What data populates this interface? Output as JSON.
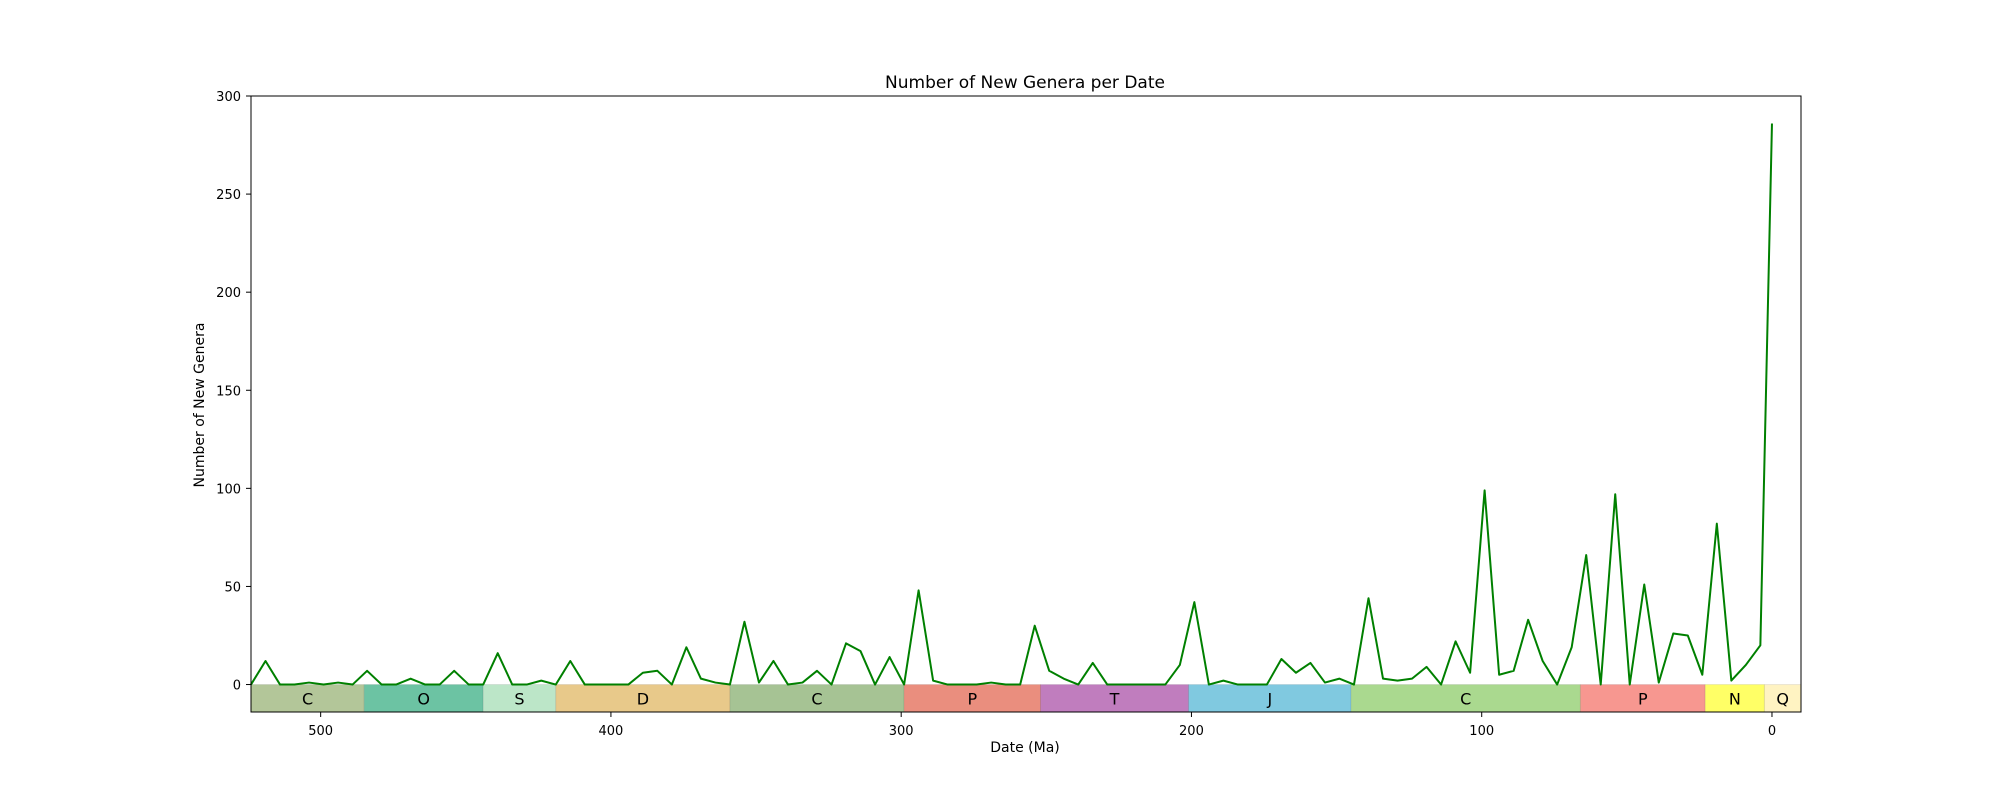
{
  "chart_data": {
    "type": "line",
    "title": "Number of New Genera per Date",
    "xlabel": "Date (Ma)",
    "ylabel": "Number of New Genera",
    "x_reversed": true,
    "xlim": [
      524,
      -10
    ],
    "ylim": [
      -14,
      300
    ],
    "x_ticks": [
      500,
      400,
      300,
      200,
      100,
      0
    ],
    "y_ticks": [
      0,
      50,
      100,
      150,
      200,
      250,
      300
    ],
    "grid": false,
    "line_color": "#008000",
    "series": [
      {
        "x": [
          524,
          519,
          514,
          509,
          504,
          499,
          494,
          489,
          484,
          479,
          474,
          469,
          464,
          459,
          454,
          449,
          444,
          439,
          434,
          429,
          424,
          419,
          414,
          409,
          404,
          399,
          394,
          389,
          384,
          379,
          374,
          369,
          364,
          359,
          354,
          349,
          344,
          339,
          334,
          329,
          324,
          319,
          314,
          309,
          304,
          299,
          294,
          289,
          284,
          279,
          274,
          269,
          264,
          259,
          254,
          249,
          244,
          239,
          234,
          229,
          224,
          219,
          214,
          209,
          204,
          199,
          194,
          189,
          184,
          179,
          174,
          169,
          164,
          159,
          154,
          149,
          144,
          139,
          134,
          129,
          124,
          119,
          114,
          109,
          104,
          99,
          94,
          89,
          84,
          79,
          74,
          69,
          64,
          59,
          54,
          49,
          44,
          39,
          34,
          29,
          24,
          19,
          14,
          9,
          4,
          0
        ],
        "values": [
          0,
          12,
          0,
          0,
          1,
          0,
          1,
          0,
          7,
          0,
          0,
          3,
          0,
          0,
          7,
          0,
          0,
          16,
          0,
          0,
          2,
          0,
          12,
          0,
          0,
          0,
          0,
          6,
          7,
          0,
          19,
          3,
          1,
          0,
          32,
          1,
          12,
          0,
          1,
          7,
          0,
          21,
          17,
          0,
          14,
          0,
          48,
          2,
          0,
          0,
          0,
          1,
          0,
          0,
          30,
          7,
          3,
          0,
          11,
          0,
          0,
          0,
          0,
          0,
          10,
          42,
          0,
          2,
          0,
          0,
          0,
          13,
          6,
          11,
          1,
          3,
          0,
          44,
          3,
          2,
          3,
          9,
          0,
          22,
          6,
          99,
          5,
          7,
          33,
          12,
          0,
          19,
          66,
          0,
          97,
          0,
          51,
          1,
          26,
          25,
          5,
          82,
          2,
          10,
          20,
          286
        ]
      }
    ],
    "periods": [
      {
        "label": "C",
        "start": 524,
        "end": 485,
        "color": "#b3c699"
      },
      {
        "label": "O",
        "start": 485,
        "end": 444,
        "color": "#6cc3a3"
      },
      {
        "label": "S",
        "start": 444,
        "end": 419,
        "color": "#bce6c8"
      },
      {
        "label": "D",
        "start": 419,
        "end": 359,
        "color": "#e8c98a"
      },
      {
        "label": "C",
        "start": 359,
        "end": 299,
        "color": "#a6c394"
      },
      {
        "label": "P",
        "start": 299,
        "end": 252,
        "color": "#ea8e7e"
      },
      {
        "label": "T",
        "start": 252,
        "end": 201,
        "color": "#c07dbe"
      },
      {
        "label": "J",
        "start": 201,
        "end": 145,
        "color": "#80c9e0"
      },
      {
        "label": "C",
        "start": 145,
        "end": 66,
        "color": "#aad98f"
      },
      {
        "label": "P",
        "start": 66,
        "end": 23,
        "color": "#f79790"
      },
      {
        "label": "N",
        "start": 23,
        "end": 2.6,
        "color": "#ffff66"
      },
      {
        "label": "Q",
        "start": 2.6,
        "end": -10,
        "color": "#fff3c2"
      }
    ]
  }
}
